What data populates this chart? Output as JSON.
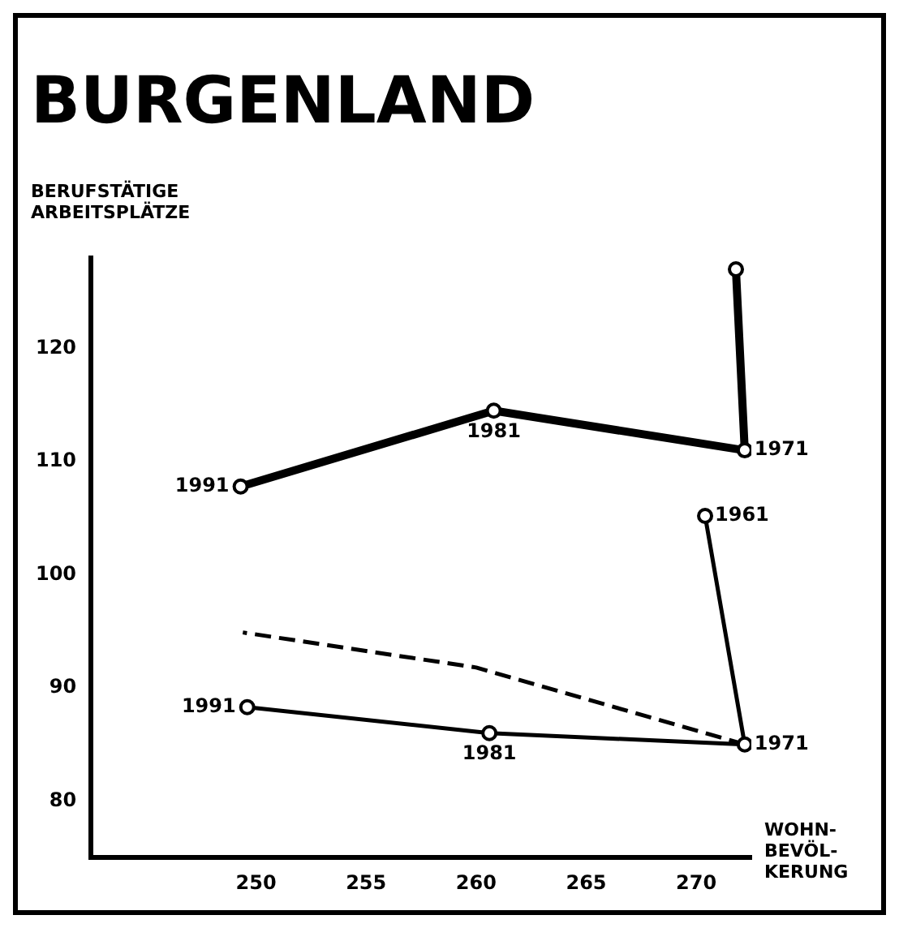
{
  "chart_data": {
    "type": "line",
    "title": "BURGENLAND",
    "ylabel": "BERUFSTÄTIGE ARBEITSPLÄTZE",
    "xlabel": "WOHN- BEVÖL- KERUNG",
    "xlim": [
      242.5,
      272.5
    ],
    "xticks": [
      250,
      255,
      260,
      265,
      270
    ],
    "ylim": [
      75,
      128
    ],
    "yticks": [
      80,
      90,
      100,
      110,
      120
    ],
    "grid": false,
    "legend": false,
    "series": [
      {
        "color": "#000000",
        "x": [
          271.8,
          272.2,
          260.8,
          249.3
        ],
        "values": [
          127,
          111,
          114.5,
          107.8
        ],
        "marker": "circle",
        "line_style": "solid"
      },
      {
        "color": "#000000",
        "x": [
          270.4,
          272.2,
          260.6,
          249.6
        ],
        "values": [
          105.2,
          85,
          86,
          88.3
        ],
        "marker": "circle",
        "line_style": "solid"
      },
      {
        "color": "#000000",
        "x": [
          272.2,
          260,
          249.4
        ],
        "values": [
          85,
          91.8,
          94.9
        ],
        "marker": "none",
        "line_style": "dashed"
      }
    ],
    "annotations": [
      {
        "text": "1971",
        "x": 272.2,
        "y": 111
      },
      {
        "text": "1981",
        "x": 260.8,
        "y": 114.5
      },
      {
        "text": "1991",
        "x": 249.3,
        "y": 107.8
      },
      {
        "text": "1961",
        "x": 270.4,
        "y": 105.2
      },
      {
        "text": "1971",
        "x": 272.2,
        "y": 85
      },
      {
        "text": "1981",
        "x": 260.6,
        "y": 86
      },
      {
        "text": "1991",
        "x": 249.6,
        "y": 88.3
      }
    ]
  }
}
